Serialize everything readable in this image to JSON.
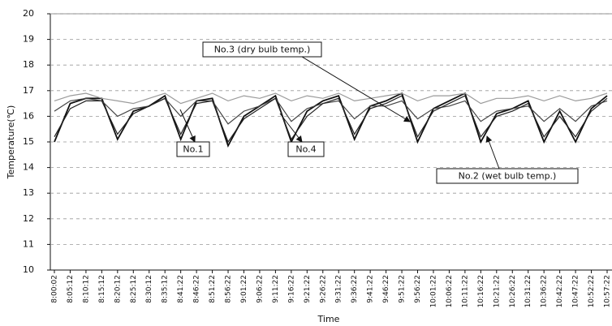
{
  "chart_data": {
    "type": "line",
    "ylabel": "Temperature(℃)",
    "xlabel": "Time",
    "categories": [
      "8:00:02",
      "8:05:12",
      "8:10:12",
      "8:15:12",
      "8:20:12",
      "8:25:12",
      "8:30:12",
      "8:35:12",
      "8:41:22",
      "8:46:22",
      "8:51:22",
      "8:56:22",
      "9:01:22",
      "9:06:22",
      "9:11:22",
      "9:16:22",
      "9:21:22",
      "9:26:22",
      "9:31:22",
      "9:36:22",
      "9:41:22",
      "9:46:22",
      "9:51:22",
      "9:56:22",
      "10:01:22",
      "10:06:22",
      "10:11:22",
      "10:16:22",
      "10:21:22",
      "10:26:22",
      "10:31:22",
      "10:36:22",
      "10:42:22",
      "10:47:22",
      "10:52:22",
      "10:57:22"
    ],
    "series": [
      {
        "name": "No.1",
        "color": "#111111",
        "values": [
          15.0,
          16.5,
          16.7,
          16.7,
          15.1,
          16.2,
          16.4,
          16.8,
          15.1,
          16.6,
          16.7,
          14.85,
          16.0,
          16.4,
          16.8,
          15.0,
          16.2,
          16.6,
          16.8,
          15.1,
          16.4,
          16.6,
          16.9,
          15.0,
          16.3,
          16.6,
          16.9,
          15.0,
          16.1,
          16.3,
          16.6,
          15.0,
          16.2,
          15.0,
          16.3,
          16.8
        ]
      },
      {
        "name": "No.2 (wet bulb temp.)",
        "color": "#444444",
        "values": [
          16.2,
          16.6,
          16.7,
          16.6,
          16.0,
          16.3,
          16.4,
          16.7,
          16.0,
          16.6,
          16.6,
          15.7,
          16.2,
          16.4,
          16.7,
          15.8,
          16.3,
          16.5,
          16.6,
          15.9,
          16.4,
          16.4,
          16.6,
          15.9,
          16.3,
          16.4,
          16.6,
          15.8,
          16.2,
          16.3,
          16.4,
          15.8,
          16.3,
          15.8,
          16.4,
          16.6
        ]
      },
      {
        "name": "No.3 (dry bulb temp.)",
        "color": "#9a9a9a",
        "values": [
          16.6,
          16.8,
          16.9,
          16.7,
          16.6,
          16.5,
          16.7,
          16.9,
          16.5,
          16.7,
          16.9,
          16.6,
          16.8,
          16.7,
          16.9,
          16.6,
          16.8,
          16.7,
          16.9,
          16.6,
          16.7,
          16.8,
          16.9,
          16.6,
          16.8,
          16.8,
          16.9,
          16.5,
          16.7,
          16.7,
          16.8,
          16.6,
          16.8,
          16.6,
          16.7,
          16.9
        ]
      },
      {
        "name": "No.4",
        "color": "#222222",
        "values": [
          15.2,
          16.3,
          16.6,
          16.6,
          15.3,
          16.1,
          16.4,
          16.7,
          15.3,
          16.5,
          16.6,
          15.0,
          15.9,
          16.3,
          16.7,
          15.1,
          16.0,
          16.5,
          16.7,
          15.3,
          16.3,
          16.5,
          16.8,
          15.2,
          16.2,
          16.5,
          16.8,
          15.2,
          16.0,
          16.2,
          16.5,
          15.2,
          16.0,
          15.2,
          16.2,
          16.7
        ]
      }
    ],
    "ylim": [
      10,
      20
    ],
    "yticks": [
      10,
      11,
      12,
      13,
      14,
      15,
      16,
      17,
      18,
      19,
      20
    ],
    "grid": true
  }
}
